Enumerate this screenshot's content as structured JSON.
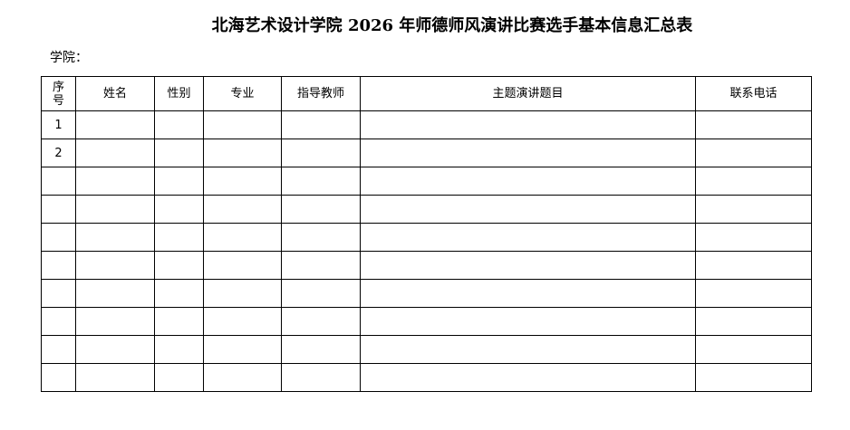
{
  "title": "北海艺术设计学院 2026 年师德师风演讲比赛选手基本信息汇总表",
  "college_label": "学院：",
  "headers": [
    "序号",
    "姓名",
    "性别",
    "专业",
    "指导教师",
    "主题演讲题目",
    "联系电话"
  ],
  "rows": [
    [
      "1",
      "",
      "",
      "",
      "",
      "",
      ""
    ],
    [
      "2",
      "",
      "",
      "",
      "",
      "",
      ""
    ],
    [
      "",
      "",
      "",
      "",
      "",
      "",
      ""
    ],
    [
      "",
      "",
      "",
      "",
      "",
      "",
      ""
    ],
    [
      "",
      "",
      "",
      "",
      "",
      "",
      ""
    ],
    [
      "",
      "",
      "",
      "",
      "",
      "",
      ""
    ],
    [
      "",
      "",
      "",
      "",
      "",
      "",
      ""
    ],
    [
      "",
      "",
      "",
      "",
      "",
      "",
      ""
    ],
    [
      "",
      "",
      "",
      "",
      "",
      "",
      ""
    ],
    [
      "",
      "",
      "",
      "",
      "",
      "",
      ""
    ]
  ]
}
